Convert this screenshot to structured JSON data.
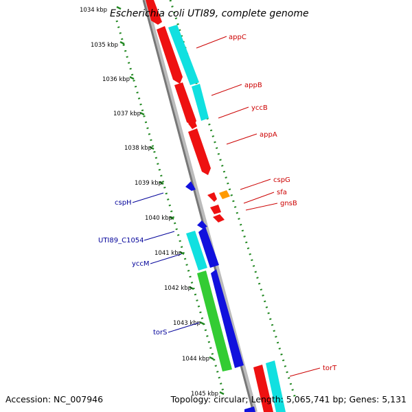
{
  "header": {
    "title": "Escherichia coli UTI89, complete genome"
  },
  "footer": {
    "accession": "Accession: NC_007946",
    "topology": "Topology: circular; Length: 5,065,741 bp; Genes: 5,131"
  },
  "colors": {
    "red": "#ee1111",
    "cyan": "#11e0e0",
    "blue": "#1111dd",
    "green": "#33cc33",
    "orange": "#ff9900",
    "ruler": "#228822",
    "backbone": "#888888",
    "label_red": "#cc0000",
    "label_blue": "#000099"
  },
  "ruler": {
    "ticks": [
      {
        "label": "1034 kbp",
        "value": 1034
      },
      {
        "label": "1035 kbp",
        "value": 1035
      },
      {
        "label": "1036 kbp",
        "value": 1036
      },
      {
        "label": "1037 kbp",
        "value": 1037
      },
      {
        "label": "1038 kbp",
        "value": 1038
      },
      {
        "label": "1039 kbp",
        "value": 1039
      },
      {
        "label": "1040 kbp",
        "value": 1040
      },
      {
        "label": "1041 kbp",
        "value": 1041
      },
      {
        "label": "1042 kbp",
        "value": 1042
      },
      {
        "label": "1043 kbp",
        "value": 1043
      },
      {
        "label": "1044 kbp",
        "value": 1044
      },
      {
        "label": "1045 kbp",
        "value": 1045
      }
    ]
  },
  "labels_right": [
    {
      "text": "appC"
    },
    {
      "text": "appB"
    },
    {
      "text": "yccB"
    },
    {
      "text": "appA"
    },
    {
      "text": "cspG"
    },
    {
      "text": "sfa"
    },
    {
      "text": "gnsB"
    },
    {
      "text": "torT"
    }
  ],
  "labels_left": [
    {
      "text": "cspH"
    },
    {
      "text": "UTI89_C1054"
    },
    {
      "text": "yccM"
    },
    {
      "text": "torS"
    }
  ]
}
